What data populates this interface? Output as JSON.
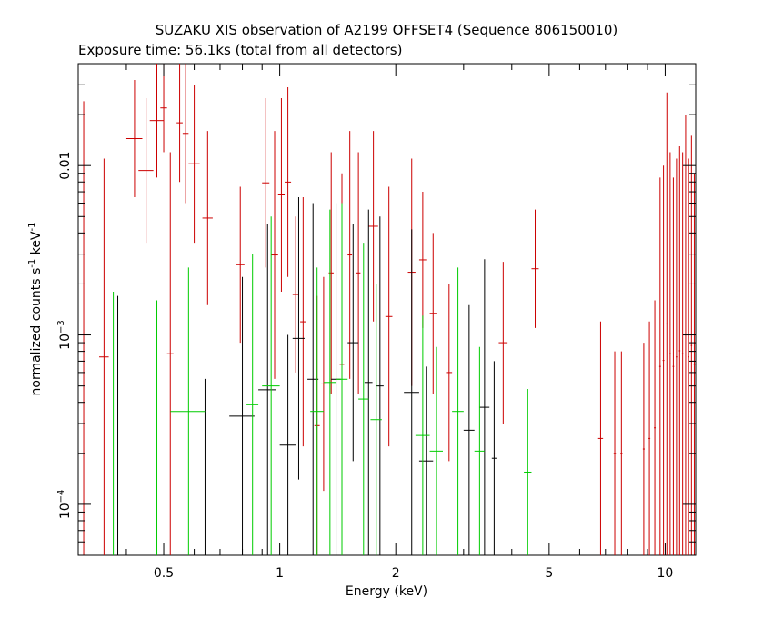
{
  "chart_data": {
    "type": "scatter",
    "title": "SUZAKU XIS observation of A2199 OFFSET4 (Sequence 806150010)",
    "subtitle": "Exposure time: 56.1ks (total from all detectors)",
    "xlabel": "Energy (keV)",
    "ylabel": {
      "main": "normalized counts s",
      "exp1": "-1",
      "mid": " keV",
      "exp2": "-1"
    },
    "xscale": "log",
    "yscale": "log",
    "xlim": [
      0.3,
      12.0
    ],
    "ylim": [
      5e-05,
      0.04
    ],
    "grid": false,
    "x_ticks": [
      {
        "value": 0.5,
        "label": "0.5"
      },
      {
        "value": 1,
        "label": "1"
      },
      {
        "value": 2,
        "label": "2"
      },
      {
        "value": 5,
        "label": "5"
      },
      {
        "value": 10,
        "label": "10"
      }
    ],
    "y_ticks": [
      {
        "value": 0.0001,
        "base": "10",
        "exp": "−4"
      },
      {
        "value": 0.001,
        "base": "10",
        "exp": "−3"
      },
      {
        "value": 0.01,
        "base": "0.01",
        "exp": ""
      }
    ],
    "series": [
      {
        "color": "#cc0000",
        "points": [
          [
            0.31,
            0.31,
            0.31,
            5e-05,
            0.024
          ],
          [
            0.35,
            0.34,
            0.36,
            5e-05,
            0.011
          ],
          [
            0.42,
            0.4,
            0.44,
            0.0065,
            0.032
          ],
          [
            0.45,
            0.43,
            0.47,
            0.0035,
            0.025
          ],
          [
            0.48,
            0.46,
            0.5,
            0.0085,
            0.04
          ],
          [
            0.5,
            0.49,
            0.51,
            0.012,
            0.04
          ],
          [
            0.52,
            0.51,
            0.53,
            5e-05,
            0.012
          ],
          [
            0.55,
            0.54,
            0.56,
            0.008,
            0.04
          ],
          [
            0.57,
            0.56,
            0.58,
            0.006,
            0.04
          ],
          [
            0.6,
            0.58,
            0.62,
            0.0035,
            0.03
          ],
          [
            0.65,
            0.63,
            0.67,
            0.0015,
            0.016
          ],
          [
            0.79,
            0.77,
            0.81,
            0.0009,
            0.0075
          ],
          [
            0.92,
            0.9,
            0.94,
            0.0025,
            0.025
          ],
          [
            0.97,
            0.95,
            0.99,
            0.00055,
            0.016
          ],
          [
            1.01,
            0.99,
            1.03,
            0.0018,
            0.025
          ],
          [
            1.05,
            1.03,
            1.07,
            0.0022,
            0.029
          ],
          [
            1.1,
            1.08,
            1.12,
            0.0006,
            0.005
          ],
          [
            1.15,
            1.13,
            1.17,
            0.00022,
            0.0065
          ],
          [
            1.25,
            1.23,
            1.27,
            5e-05,
            0.0017
          ],
          [
            1.3,
            1.28,
            1.32,
            0.00012,
            0.0022
          ],
          [
            1.36,
            1.34,
            1.38,
            0.00045,
            0.012
          ],
          [
            1.45,
            1.43,
            1.47,
            5e-05,
            0.009
          ],
          [
            1.52,
            1.5,
            1.54,
            0.00055,
            0.016
          ],
          [
            1.6,
            1.58,
            1.62,
            0.00045,
            0.012
          ],
          [
            1.75,
            1.7,
            1.8,
            0.0012,
            0.016
          ],
          [
            1.92,
            1.88,
            1.96,
            0.00022,
            0.0075
          ],
          [
            2.2,
            2.15,
            2.25,
            0.0005,
            0.011
          ],
          [
            2.35,
            2.3,
            2.4,
            0.0011,
            0.007
          ],
          [
            2.5,
            2.45,
            2.55,
            0.00045,
            0.004
          ],
          [
            2.75,
            2.7,
            2.8,
            0.00018,
            0.002
          ],
          [
            3.8,
            3.7,
            3.9,
            0.0003,
            0.0027
          ],
          [
            4.6,
            4.5,
            4.7,
            0.0011,
            0.0055
          ],
          [
            6.8,
            6.7,
            6.9,
            5e-05,
            0.0012
          ],
          [
            7.4,
            7.35,
            7.45,
            5e-05,
            0.0008
          ],
          [
            7.7,
            7.65,
            7.75,
            5e-05,
            0.0008
          ],
          [
            8.8,
            8.75,
            8.85,
            5e-05,
            0.0009
          ],
          [
            9.1,
            9.05,
            9.15,
            5e-05,
            0.0012
          ],
          [
            9.4,
            9.35,
            9.45,
            5e-05,
            0.0016
          ],
          [
            9.7,
            9.65,
            9.75,
            5e-05,
            0.0085
          ],
          [
            9.9,
            9.85,
            9.95,
            5e-05,
            0.01
          ],
          [
            10.1,
            10.05,
            10.15,
            5e-05,
            0.027
          ],
          [
            10.3,
            10.25,
            10.35,
            5e-05,
            0.012
          ],
          [
            10.5,
            10.45,
            10.55,
            5e-05,
            0.0085
          ],
          [
            10.7,
            10.65,
            10.75,
            5e-05,
            0.011
          ],
          [
            10.9,
            10.85,
            10.95,
            5e-05,
            0.013
          ],
          [
            11.1,
            11.05,
            11.15,
            5e-05,
            0.012
          ],
          [
            11.3,
            11.25,
            11.35,
            5e-05,
            0.02
          ],
          [
            11.5,
            11.45,
            11.55,
            5e-05,
            0.011
          ],
          [
            11.7,
            11.65,
            11.75,
            5e-05,
            0.015
          ],
          [
            11.9,
            11.85,
            11.95,
            5e-05,
            0.009
          ]
        ]
      },
      {
        "color": "#000000",
        "points": [
          [
            0.38,
            0.38,
            0.38,
            5e-05,
            0.0017
          ],
          [
            0.64,
            0.64,
            0.64,
            5e-05,
            0.00055
          ],
          [
            0.8,
            0.74,
            0.86,
            5e-05,
            0.0022
          ],
          [
            0.93,
            0.88,
            0.98,
            5e-05,
            0.0045
          ],
          [
            1.05,
            1.0,
            1.1,
            5e-05,
            0.001
          ],
          [
            1.12,
            1.08,
            1.16,
            0.00014,
            0.0065
          ],
          [
            1.22,
            1.18,
            1.26,
            5e-05,
            0.006
          ],
          [
            1.4,
            1.36,
            1.44,
            5e-05,
            0.006
          ],
          [
            1.55,
            1.5,
            1.6,
            0.00018,
            0.0045
          ],
          [
            1.7,
            1.66,
            1.74,
            5e-05,
            0.0055
          ],
          [
            1.82,
            1.78,
            1.86,
            5e-05,
            0.005
          ],
          [
            2.2,
            2.1,
            2.3,
            5e-05,
            0.0042
          ],
          [
            2.4,
            2.3,
            2.5,
            5e-05,
            0.00065
          ],
          [
            3.1,
            3.0,
            3.2,
            5e-05,
            0.0015
          ],
          [
            3.4,
            3.3,
            3.5,
            5e-05,
            0.0028
          ],
          [
            3.6,
            3.55,
            3.65,
            5e-05,
            0.0007
          ]
        ]
      },
      {
        "color": "#00cc00",
        "points": [
          [
            0.37,
            0.37,
            0.37,
            5e-05,
            0.0018
          ],
          [
            0.48,
            0.48,
            0.48,
            5e-05,
            0.0016
          ],
          [
            0.58,
            0.52,
            0.64,
            5e-05,
            0.0025
          ],
          [
            0.85,
            0.82,
            0.88,
            5e-05,
            0.003
          ],
          [
            0.95,
            0.9,
            1.0,
            5e-05,
            0.005
          ],
          [
            1.25,
            1.2,
            1.3,
            5e-05,
            0.0025
          ],
          [
            1.35,
            1.3,
            1.4,
            5e-05,
            0.0055
          ],
          [
            1.45,
            1.4,
            1.5,
            5e-05,
            0.006
          ],
          [
            1.65,
            1.6,
            1.7,
            5e-05,
            0.0035
          ],
          [
            1.78,
            1.72,
            1.84,
            5e-05,
            0.002
          ],
          [
            2.35,
            2.25,
            2.45,
            5e-05,
            0.0013
          ],
          [
            2.55,
            2.45,
            2.65,
            5e-05,
            0.00085
          ],
          [
            2.9,
            2.8,
            3.0,
            5e-05,
            0.0025
          ],
          [
            3.3,
            3.2,
            3.4,
            5e-05,
            0.00085
          ],
          [
            4.4,
            4.3,
            4.5,
            5e-05,
            0.00048
          ]
        ]
      }
    ]
  }
}
